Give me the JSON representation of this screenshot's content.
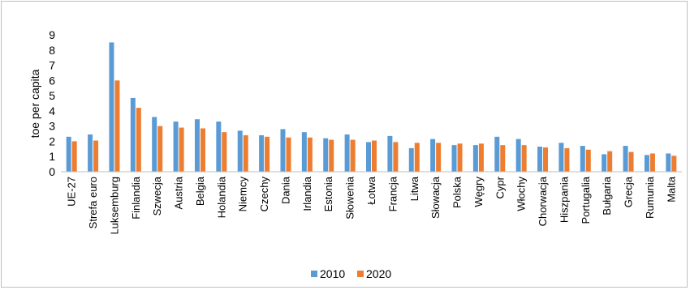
{
  "chart_data": {
    "type": "bar",
    "title": "",
    "xlabel": "",
    "ylabel": "toe per capita",
    "ylim": [
      0,
      9
    ],
    "yticks": [
      0,
      1,
      2,
      3,
      4,
      5,
      6,
      7,
      8,
      9
    ],
    "grid": false,
    "legend_position": "bottom",
    "categories": [
      "UE-27",
      "Strefa euro",
      "Luksemburg",
      "Finlandia",
      "Szwecja",
      "Austria",
      "Belgia",
      "Holandia",
      "Niemcy",
      "Czechy",
      "Dania",
      "Irlandia",
      "Estonia",
      "Słowenia",
      "Łotwa",
      "Francja",
      "Litwa",
      "Słowacja",
      "Polska",
      "Węgry",
      "Cypr",
      "Włochy",
      "Chorwacja",
      "Hiszpania",
      "Portugalia",
      "Bułgaria",
      "Grecja",
      "Rumunia",
      "Malta"
    ],
    "series": [
      {
        "name": "2010",
        "color": "#5b9bd5",
        "values": [
          2.3,
          2.45,
          8.5,
          4.85,
          3.6,
          3.3,
          3.45,
          3.3,
          2.7,
          2.4,
          2.8,
          2.6,
          2.2,
          2.45,
          1.95,
          2.35,
          1.55,
          2.15,
          1.75,
          1.75,
          2.3,
          2.15,
          1.65,
          1.9,
          1.7,
          1.15,
          1.7,
          1.1,
          1.2
        ]
      },
      {
        "name": "2020",
        "color": "#ed7d31",
        "values": [
          2.0,
          2.05,
          6.0,
          4.2,
          3.0,
          2.9,
          2.85,
          2.6,
          2.4,
          2.3,
          2.25,
          2.25,
          2.1,
          2.1,
          2.05,
          1.95,
          1.9,
          1.9,
          1.85,
          1.85,
          1.75,
          1.75,
          1.6,
          1.55,
          1.45,
          1.35,
          1.3,
          1.2,
          1.05
        ]
      }
    ]
  }
}
